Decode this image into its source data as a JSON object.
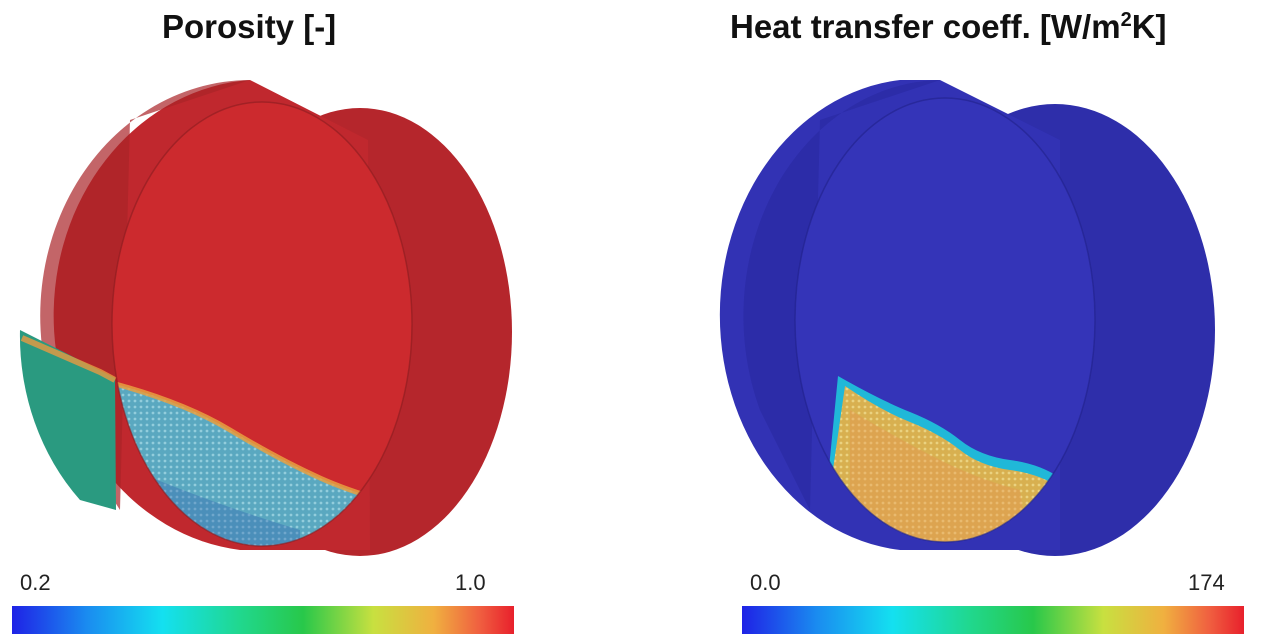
{
  "porosity_panel": {
    "title": "Porosity [-]",
    "colorbar": {
      "min_label": "0.2",
      "max_label": "1.0"
    }
  },
  "htc_panel": {
    "title_main": "Heat transfer coeff. [W/m",
    "title_sup": "2",
    "title_end": "K]",
    "colorbar": {
      "min_label": "0.0",
      "max_label": "174"
    }
  },
  "colors": {
    "porosity_high": "#cc2a2e",
    "htc_low": "#3434b8",
    "colormap_low": "#1f22e6",
    "colormap_high": "#e8202c"
  }
}
